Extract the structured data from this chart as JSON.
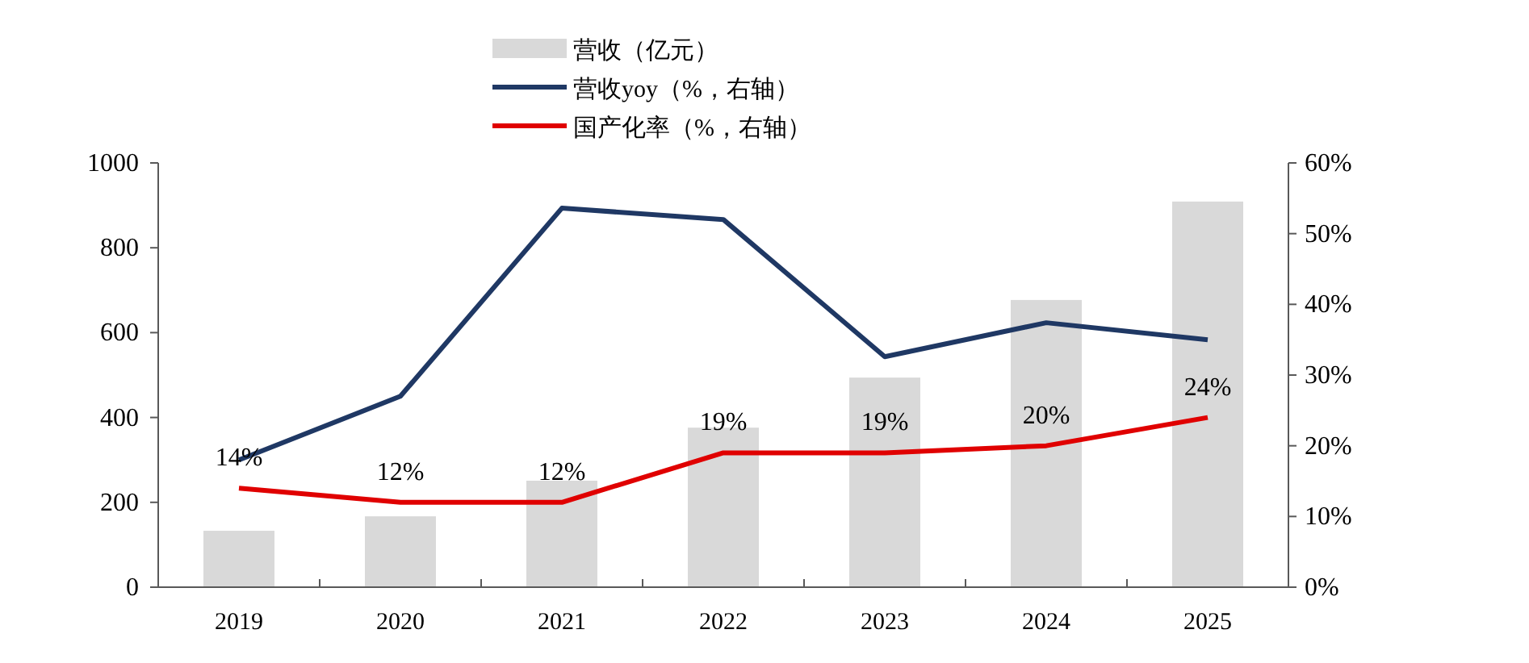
{
  "chart_data": {
    "type": "bar",
    "categories": [
      "2019",
      "2020",
      "2021",
      "2022",
      "2023",
      "2024",
      "2025"
    ],
    "series": [
      {
        "name": "营收（亿元）",
        "color": "#d9d9d9",
        "values": [
          133,
          167,
          251,
          376,
          494,
          677,
          909
        ]
      },
      {
        "name": "营收yoy（%，右轴）",
        "type": "line",
        "axis": "y2",
        "color": "#1f3864",
        "values": [
          18,
          27,
          53.6,
          52,
          32.6,
          37.4,
          35
        ]
      },
      {
        "name": "国产化率（%，右轴）",
        "type": "line",
        "axis": "y2",
        "color": "#e00000",
        "values": [
          14,
          12,
          12,
          19,
          19,
          20,
          24
        ],
        "value_labels": [
          "14%",
          "12%",
          "12%",
          "19%",
          "19%",
          "20%",
          "24%"
        ]
      }
    ],
    "ylim": [
      0,
      1000
    ],
    "yticks": [
      0,
      200,
      400,
      600,
      800,
      1000
    ],
    "y2lim": [
      0,
      60
    ],
    "y2ticks": [
      {
        "value": 0,
        "label": "0%"
      },
      {
        "value": 10,
        "label": "10%"
      },
      {
        "value": 20,
        "label": "20%"
      },
      {
        "value": 30,
        "label": "30%"
      },
      {
        "value": 40,
        "label": "40%"
      },
      {
        "value": 50,
        "label": "50%"
      },
      {
        "value": 60,
        "label": "60%"
      }
    ],
    "legend": "top",
    "grid": false
  }
}
